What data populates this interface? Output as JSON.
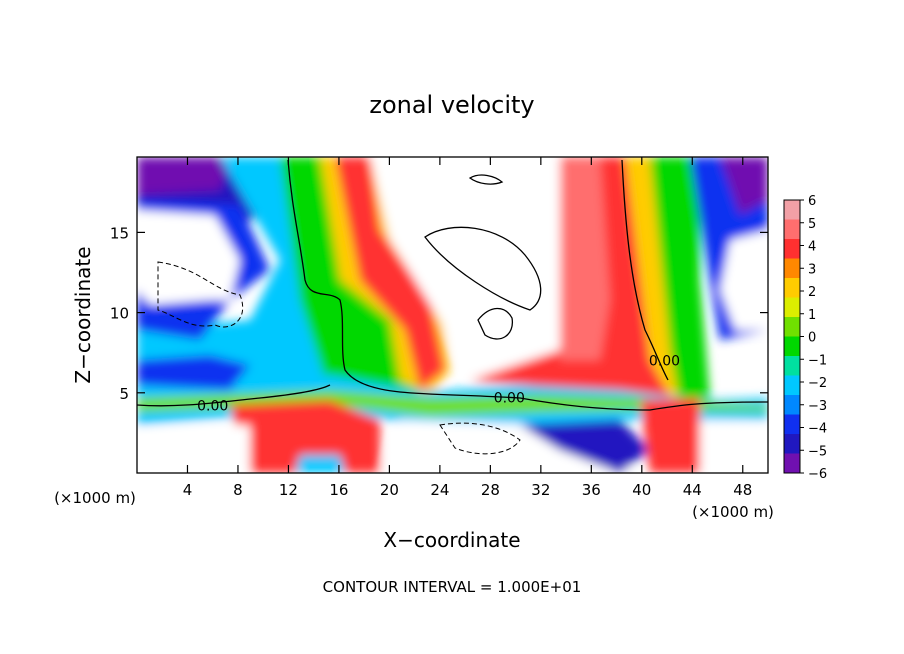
{
  "chart_data": {
    "type": "heatmap",
    "title": "zonal velocity",
    "xlabel": "X−coordinate",
    "ylabel": "Z−coordinate",
    "x_unit_left": "(×1000 m)",
    "x_unit_right": "(×1000 m)",
    "footer": "CONTOUR INTERVAL = 1.000E+01",
    "xlim": [
      0,
      50
    ],
    "ylim": [
      0,
      19.7
    ],
    "xticks": [
      4,
      8,
      12,
      16,
      20,
      24,
      28,
      32,
      36,
      40,
      44,
      48
    ],
    "yticks": [
      5,
      10,
      15
    ],
    "colorbar": {
      "min": -6,
      "max": 6,
      "ticks": [
        6,
        5,
        4,
        3,
        2,
        1,
        0,
        -1,
        -2,
        -3,
        -4,
        -5,
        -6
      ],
      "colors": [
        "#f2a0a6",
        "#ff6e6e",
        "#ff3030",
        "#ff8800",
        "#ffcc00",
        "#dcee00",
        "#70e000",
        "#00d800",
        "#00e0a0",
        "#00c8ff",
        "#0088ff",
        "#1030f0",
        "#2018c0",
        "#7010b0"
      ]
    },
    "contour_labels": [
      {
        "text": "0.00",
        "x": 6.0,
        "y": 4.2
      },
      {
        "text": "0.00",
        "x": 29.5,
        "y": 4.7
      },
      {
        "text": "0.00",
        "x": 41.8,
        "y": 7.0
      }
    ]
  }
}
